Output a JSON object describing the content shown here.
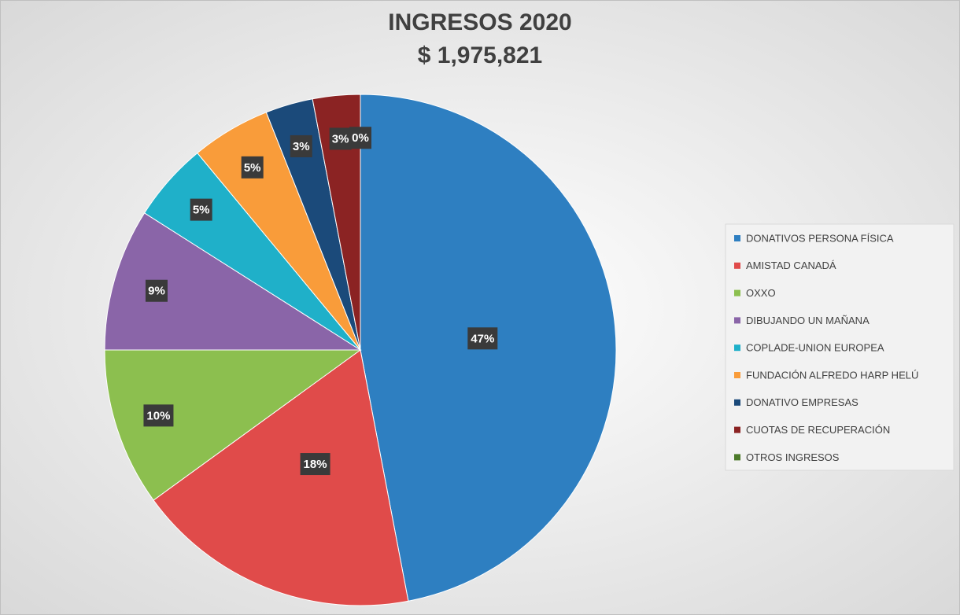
{
  "chart_data": {
    "type": "pie",
    "title": "INGRESOS 2020",
    "subtitle": "$ 1,975,821",
    "categories": [
      "DONATIVOS PERSONA FÍSICA",
      "AMISTAD CANADÁ",
      "OXXO",
      "DIBUJANDO UN MAÑANA",
      "COPLADE-UNION EUROPEA",
      "FUNDACIÓN ALFREDO HARP HELÚ",
      "DONATIVO EMPRESAS",
      "CUOTAS DE RECUPERACIÓN",
      "OTROS INGRESOS"
    ],
    "values": [
      47,
      18,
      10,
      9,
      5,
      5,
      3,
      3,
      0
    ],
    "value_labels": [
      "47%",
      "18%",
      "10%",
      "9%",
      "5%",
      "5%",
      "3%",
      "3%",
      "0%"
    ],
    "colors": [
      "#2e7fc1",
      "#e04b4a",
      "#8cbf4f",
      "#8a65a8",
      "#1fb0c9",
      "#f99c3a",
      "#1b4a7a",
      "#8b2323",
      "#4c7a2a"
    ],
    "legend": "right"
  }
}
